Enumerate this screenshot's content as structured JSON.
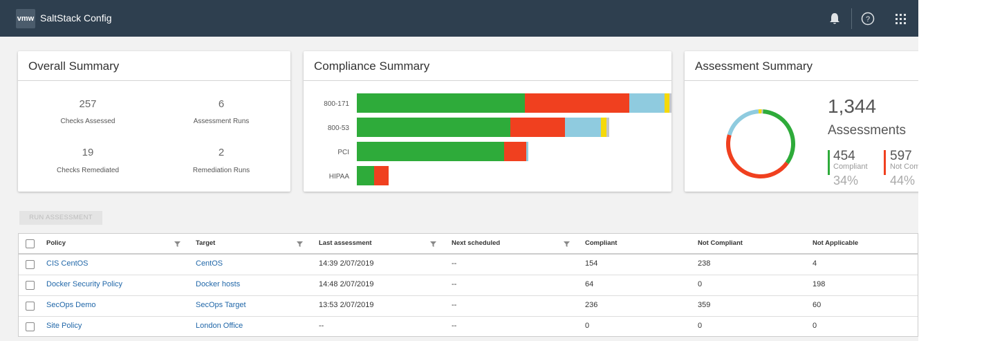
{
  "header": {
    "logo": "vmw",
    "title": "SaltStack Config"
  },
  "overall_summary": {
    "title": "Overall Summary",
    "stats": [
      {
        "value": 257,
        "label": "Checks Assessed"
      },
      {
        "value": 6,
        "label": "Assessment Runs"
      },
      {
        "value": 19,
        "label": "Checks Remediated"
      },
      {
        "value": 2,
        "label": "Remediation Runs"
      }
    ]
  },
  "compliance_summary": {
    "title": "Compliance Summary",
    "chart_data": {
      "type": "bar",
      "orientation": "horizontal",
      "stacked": true,
      "categories": [
        "800-171",
        "800-53",
        "PCI",
        "HIPAA"
      ],
      "series": [
        {
          "color": "#2eab3a",
          "values": [
            243,
            222,
            213,
            25
          ]
        },
        {
          "color": "#f0401f",
          "values": [
            151,
            79,
            32,
            21
          ]
        },
        {
          "color": "#8fcbdf",
          "values": [
            51,
            52,
            3,
            0
          ]
        },
        {
          "color": "#f5d90a",
          "values": [
            7,
            8,
            0,
            0
          ]
        },
        {
          "color": "#c3c6c9",
          "values": [
            3,
            4,
            0,
            0
          ]
        }
      ]
    }
  },
  "assessment_summary": {
    "title": "Assessment Summary",
    "total": {
      "value": 1344,
      "label": "1,344"
    },
    "total_label": "Assessments",
    "chart_data": {
      "type": "donut",
      "values": [
        454,
        597,
        262,
        20,
        11
      ],
      "colors": [
        "#2eab3a",
        "#f0401f",
        "#8fcbdf",
        "#f5d90a",
        "#c3c6c9"
      ]
    },
    "legend": [
      {
        "label": "Compliant",
        "percent": "34%"
      },
      {
        "label": "Not Compliant",
        "percent": "44%"
      }
    ]
  },
  "toolbar": {
    "run_button": "RUN ASSESSMENT"
  },
  "table": {
    "columns": [
      "Policy",
      "Target",
      "Last assessment",
      "Next scheduled",
      "Compliant",
      "Not Compliant",
      "Not Applicable"
    ],
    "rows": [
      [
        "CIS CentOS",
        "CentOS",
        "14:39 2/07/2019",
        "--",
        154,
        238,
        4
      ],
      [
        "Docker Security Policy",
        "Docker hosts",
        "14:48 2/07/2019",
        "--",
        64,
        0,
        198
      ],
      [
        "SecOps Demo",
        "SecOps Target",
        "13:53 2/07/2019",
        "--",
        236,
        359,
        60
      ],
      [
        "Site Policy",
        "London Office",
        "--",
        "--",
        0,
        0,
        0
      ]
    ]
  }
}
